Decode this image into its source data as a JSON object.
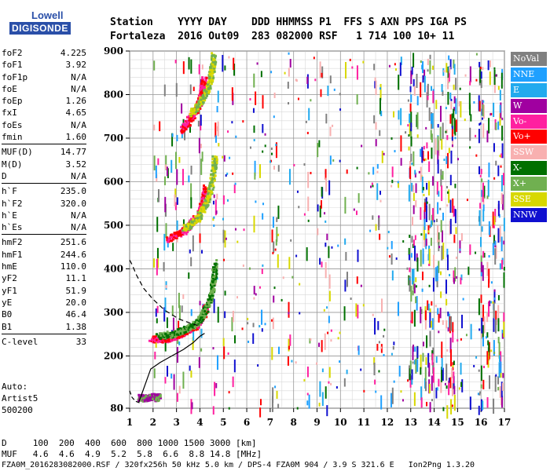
{
  "logo": {
    "line1": "Lowell",
    "line2": "DIGISONDE"
  },
  "header": {
    "line1": "Station    YYYY DAY    DDD HHMMSS P1  FFS S AXN PPS IGA PS",
    "line2": "Fortaleza  2016 Out09  283 082000 RSF   1 714 100 10+ 11"
  },
  "params": [
    {
      "k": "foF2",
      "v": "4.225"
    },
    {
      "k": "foF1",
      "v": "3.92"
    },
    {
      "k": "foF1p",
      "v": "N/A"
    },
    {
      "k": "foE",
      "v": "N/A"
    },
    {
      "k": "foEp",
      "v": "1.26"
    },
    {
      "k": "fxI",
      "v": "4.65"
    },
    {
      "k": "foEs",
      "v": "N/A"
    },
    {
      "k": "fmin",
      "v": "1.60"
    },
    {
      "sep": true
    },
    {
      "k": "MUF(D)",
      "v": "14.77"
    },
    {
      "k": "M(D)",
      "v": "3.52"
    },
    {
      "k": "D",
      "v": "N/A"
    },
    {
      "sep": true
    },
    {
      "k": "h`F",
      "v": "235.0"
    },
    {
      "k": "h`F2",
      "v": "320.0"
    },
    {
      "k": "h`E",
      "v": "N/A"
    },
    {
      "k": "h`Es",
      "v": "N/A"
    },
    {
      "sep": true
    },
    {
      "k": "hmF2",
      "v": "251.6"
    },
    {
      "k": "hmF1",
      "v": "244.6"
    },
    {
      "k": "hmE",
      "v": "110.0"
    },
    {
      "k": "yF2",
      "v": "11.1"
    },
    {
      "k": "yF1",
      "v": "51.9"
    },
    {
      "k": "yE",
      "v": "20.0"
    },
    {
      "k": "B0",
      "v": "46.4"
    },
    {
      "k": "B1",
      "v": "1.38"
    },
    {
      "sep": true
    },
    {
      "k": "C-level",
      "v": "33"
    }
  ],
  "auto": {
    "line1": "Auto:",
    "line2": "Artist5",
    "line3": "500200"
  },
  "legend": [
    {
      "label": "NoVal",
      "color": "#808080"
    },
    {
      "label": "NNE",
      "color": "#1fa0ff"
    },
    {
      "label": "E",
      "color": "#22aaee"
    },
    {
      "label": "W",
      "color": "#a000a0"
    },
    {
      "label": "Vo-",
      "color": "#ff20a0"
    },
    {
      "label": "Vo+",
      "color": "#ff0000"
    },
    {
      "label": "SSW",
      "color": "#f8b0b0"
    },
    {
      "label": "X-",
      "color": "#007000"
    },
    {
      "label": "X+",
      "color": "#70b050"
    },
    {
      "label": "SSE",
      "color": "#d8d800"
    },
    {
      "label": "NNW",
      "color": "#1010d0"
    }
  ],
  "chart_data": {
    "type": "scatter",
    "xlabel": "",
    "ylabel": "",
    "xlim": [
      1,
      17
    ],
    "ylim": [
      80,
      900
    ],
    "x_ticks": [
      "1",
      "2",
      "3",
      "4",
      "5",
      "6",
      "7",
      "8",
      "9",
      "10",
      "11",
      "12",
      "13",
      "14",
      "15",
      "16",
      "17"
    ],
    "y_ticks": [
      "80",
      "200",
      "300",
      "400",
      "500",
      "600",
      "700",
      "800",
      "900"
    ],
    "grid": true,
    "traces": [
      {
        "mode": "O",
        "x": [
          1.9,
          2.3,
          2.7,
          3.0,
          3.2,
          3.5,
          3.8,
          4.0,
          4.15,
          4.22
        ],
        "y": [
          240,
          240,
          243,
          248,
          253,
          262,
          272,
          285,
          300,
          320
        ]
      },
      {
        "mode": "X",
        "x": [
          2.2,
          2.6,
          3.0,
          3.3,
          3.6,
          3.9,
          4.1,
          4.3,
          4.45,
          4.55,
          4.62
        ],
        "y": [
          248,
          250,
          256,
          262,
          270,
          282,
          298,
          320,
          345,
          375,
          420
        ]
      },
      {
        "mode": "O2",
        "x": [
          2.6,
          3.0,
          3.3,
          3.6,
          3.9,
          4.1,
          4.2
        ],
        "y": [
          470,
          480,
          490,
          505,
          525,
          555,
          590
        ]
      },
      {
        "mode": "X2",
        "x": [
          3.3,
          3.6,
          3.9,
          4.1,
          4.3,
          4.45,
          4.55,
          4.6
        ],
        "y": [
          495,
          505,
          520,
          540,
          565,
          595,
          630,
          660
        ]
      },
      {
        "mode": "O3",
        "x": [
          3.2,
          3.4,
          3.6,
          3.8,
          3.95,
          4.05,
          4.15
        ],
        "y": [
          720,
          735,
          750,
          765,
          785,
          810,
          840
        ]
      },
      {
        "mode": "X3",
        "x": [
          3.6,
          3.85,
          4.05,
          4.25,
          4.4,
          4.5,
          4.55
        ],
        "y": [
          760,
          775,
          790,
          810,
          835,
          865,
          895
        ]
      },
      {
        "mode": "E",
        "x": [
          1.4,
          1.55,
          1.75,
          1.9,
          2.1,
          2.2
        ],
        "y": [
          106,
          105,
          106,
          108,
          106,
          108
        ]
      }
    ],
    "profile_solid": {
      "x": [
        1.4,
        1.6,
        1.9,
        2.3,
        2.8,
        3.3,
        3.7,
        4.0,
        4.2
      ],
      "y": [
        95,
        125,
        170,
        185,
        200,
        215,
        230,
        245,
        252
      ]
    },
    "profile_dashed": {
      "x": [
        1.0,
        1.1,
        1.3,
        1.6,
        2.0,
        2.5,
        3.1,
        3.6,
        3.9
      ],
      "y": [
        420,
        410,
        385,
        355,
        330,
        305,
        285,
        275,
        270
      ]
    },
    "profile_low_dashed": {
      "x": [
        1.0,
        1.1,
        1.25,
        1.45
      ],
      "y": [
        120,
        105,
        96,
        92
      ]
    }
  },
  "dmuf": {
    "line1": "D     100  200  400  600  800 1000 1500 3000 [km]",
    "line2": "MUF   4.6  4.6  4.9  5.2  5.8  6.6  8.8 14.8 [MHz]"
  },
  "footer": "FZA0M_2016283082000.RSF / 320fx256h 50 kHz 5.0 km / DPS-4 FZA0M 904 / 3.9 S 321.6 E   Ion2Png 1.3.20"
}
